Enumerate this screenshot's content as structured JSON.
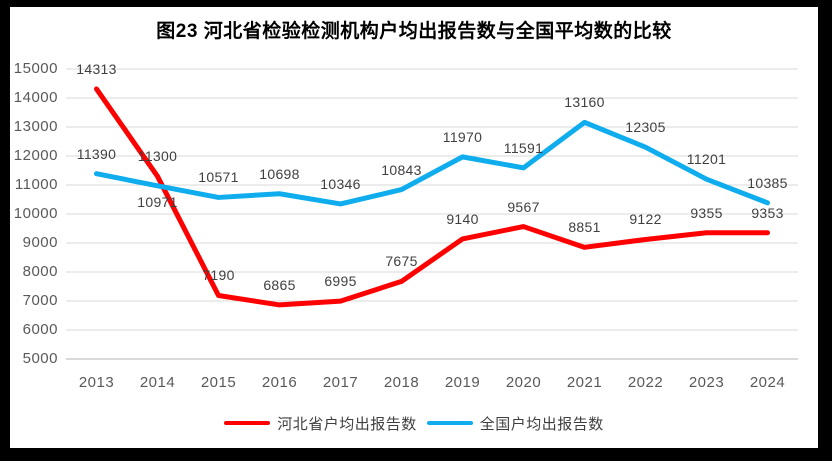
{
  "title": "图23  河北省检验检测机构户均出报告数与全国平均数的比较",
  "chart_data": {
    "type": "line",
    "title": "图23  河北省检验检测机构户均出报告数与全国平均数的比较",
    "categories": [
      "2013",
      "2014",
      "2015",
      "2016",
      "2017",
      "2018",
      "2019",
      "2020",
      "2021",
      "2022",
      "2023",
      "2024"
    ],
    "series": [
      {
        "name": "河北省户均出报告数",
        "color": "#FE0000",
        "values": [
          14313,
          11300,
          7190,
          6865,
          6995,
          7675,
          9140,
          9567,
          8851,
          9122,
          9355,
          9353
        ],
        "labels_below_indices": []
      },
      {
        "name": "全国户均出报告数",
        "color": "#0FADEE",
        "values": [
          11390,
          10971,
          10571,
          10698,
          10346,
          10843,
          11970,
          11591,
          13160,
          12305,
          11201,
          10385
        ],
        "labels_below_indices": [
          1
        ]
      }
    ],
    "ylim": [
      5000,
      15000
    ],
    "yticks": [
      5000,
      6000,
      7000,
      8000,
      9000,
      10000,
      11000,
      12000,
      13000,
      14000,
      15000
    ],
    "grid": "horizontal",
    "data_labels": true,
    "legend_position": "bottom",
    "style": {
      "gridline_color": "#D9D9D9",
      "axis_label_color": "#595959",
      "data_label_color": "#404040",
      "frame_color": "#000000",
      "background_color": "#FFFFFF"
    }
  }
}
